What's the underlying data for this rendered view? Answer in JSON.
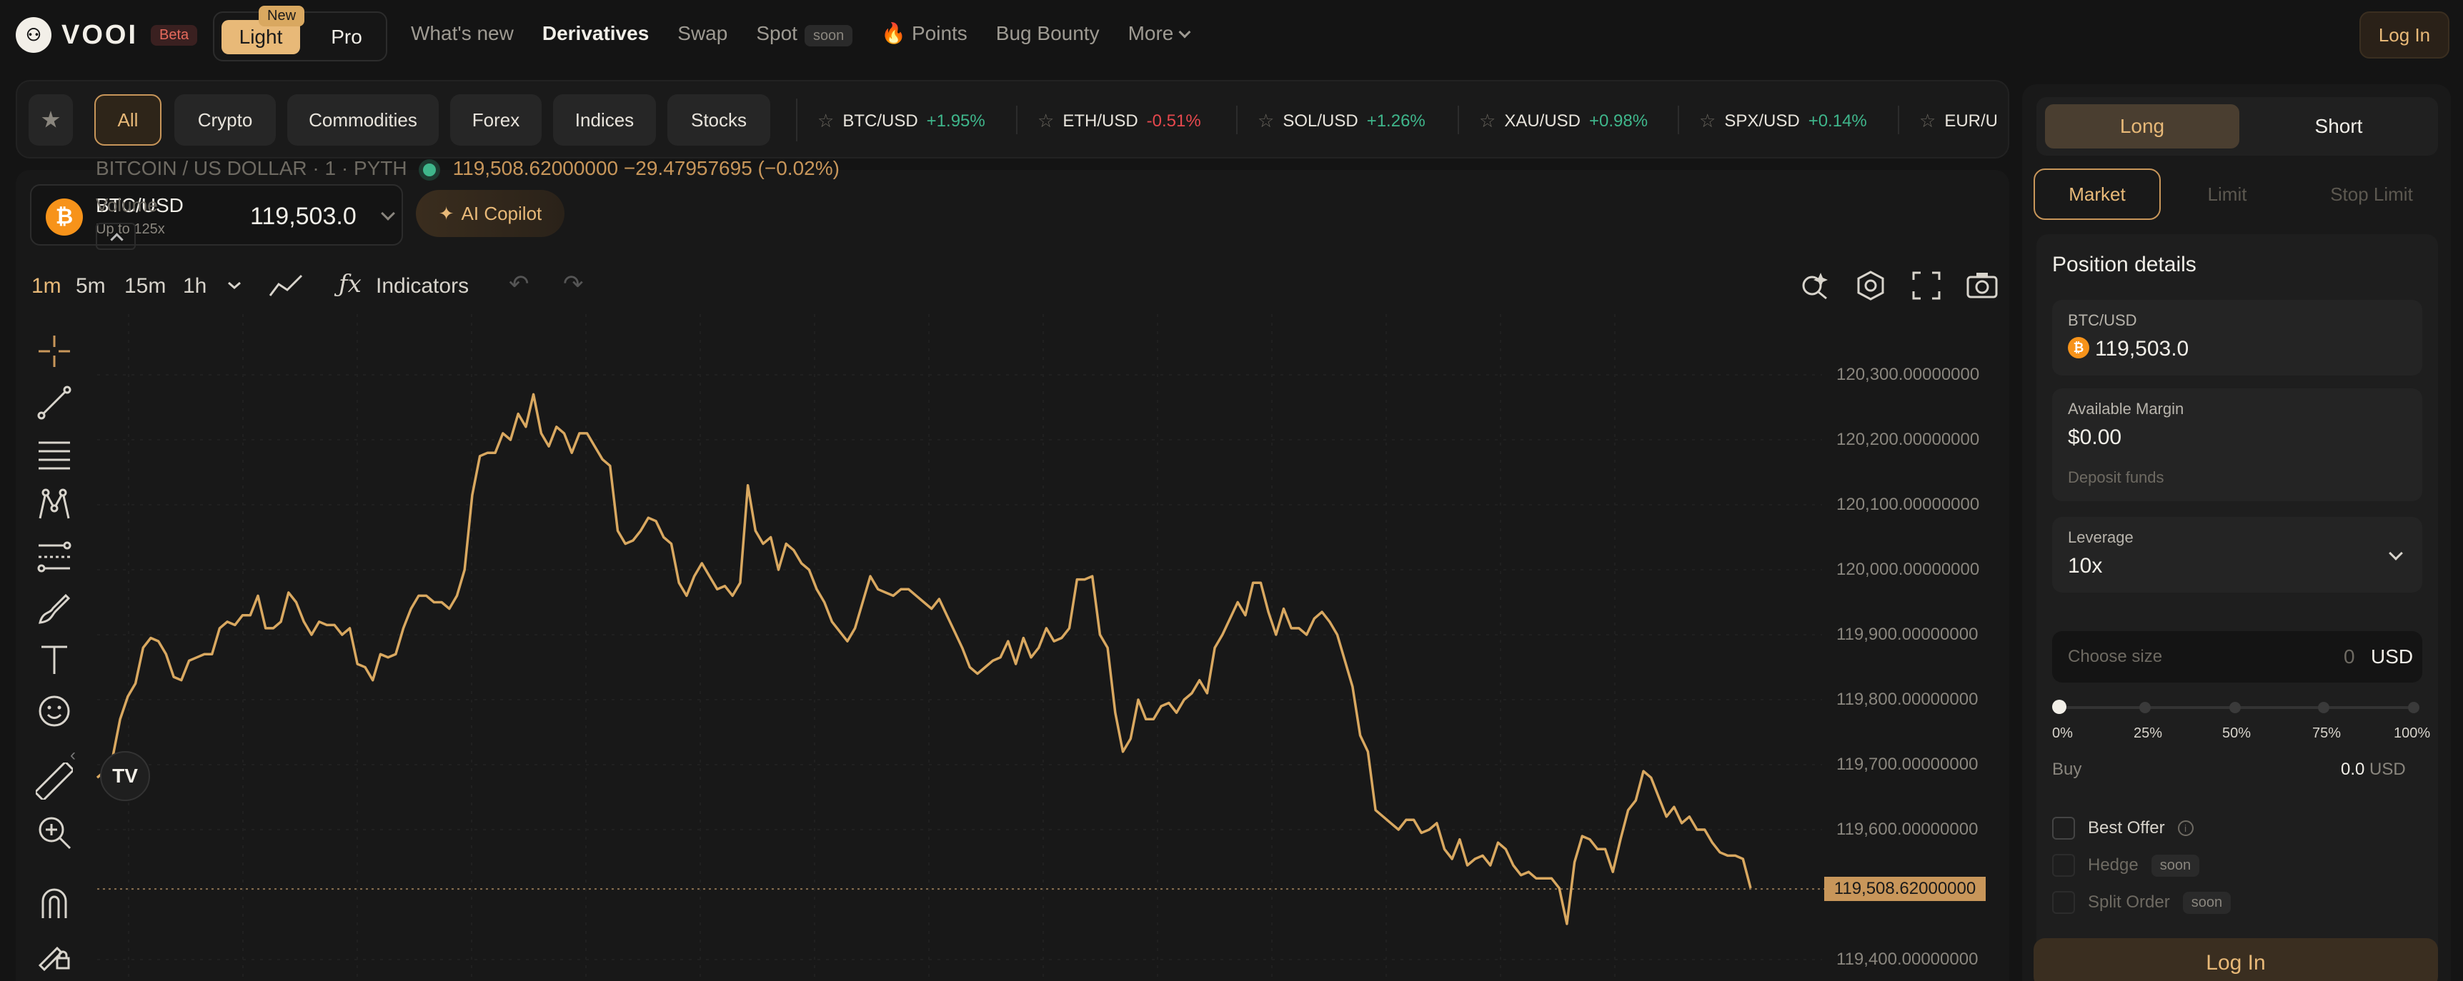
{
  "app": {
    "logo_text": "VOOI",
    "beta_badge": "Beta",
    "mode": {
      "light": "Light",
      "pro": "Pro",
      "new_badge": "New"
    },
    "login": "Log In"
  },
  "nav": {
    "items": [
      "What's new",
      "Derivatives",
      "Swap",
      "Spot",
      "Points",
      "Bug Bounty",
      "More"
    ],
    "spot_badge": "soon",
    "points_emoji": "🔥"
  },
  "filters": [
    "All",
    "Crypto",
    "Commodities",
    "Forex",
    "Indices",
    "Stocks"
  ],
  "tickers": [
    {
      "sym": "BTC/USD",
      "chg": "+1.95%",
      "dir": "pos"
    },
    {
      "sym": "ETH/USD",
      "chg": "-0.51%",
      "dir": "neg"
    },
    {
      "sym": "SOL/USD",
      "chg": "+1.26%",
      "dir": "pos"
    },
    {
      "sym": "XAU/USD",
      "chg": "+0.98%",
      "dir": "pos"
    },
    {
      "sym": "SPX/USD",
      "chg": "+0.14%",
      "dir": "pos"
    },
    {
      "sym": "EUR/U",
      "chg": "",
      "dir": "pos"
    }
  ],
  "market": {
    "pair": "BTC/USD",
    "leverage_note": "Up to 125x",
    "price": "119,503.0",
    "copilot": "AI Copilot"
  },
  "chart_toolbar": {
    "timeframes": [
      "1m",
      "5m",
      "15m",
      "1h"
    ],
    "active_tf": "1m",
    "indicators": "Indicators"
  },
  "chart_legend": {
    "title": "BITCOIN / US DOLLAR · 1 · PYTH",
    "values": "119,508.62000000  −29.47957695 (−0.02%)",
    "volume": "Volume"
  },
  "chart_data": {
    "type": "line",
    "series": [
      {
        "values": [
          119680,
          119690,
          119710,
          119770,
          119805,
          119825,
          119880,
          119895,
          119890,
          119870,
          119835,
          119830,
          119860,
          119865,
          119870,
          119870,
          119910,
          119920,
          119915,
          119930,
          119930,
          119960,
          119910,
          119910,
          119920,
          119965,
          119950,
          119920,
          119900,
          119920,
          119915,
          119915,
          119900,
          119910,
          119855,
          119850,
          119830,
          119870,
          119865,
          119870,
          119910,
          119940,
          119960,
          119960,
          119950,
          119950,
          119940,
          119960,
          120000,
          120115,
          120175,
          120180,
          120180,
          120210,
          120200,
          120240,
          120220,
          120270,
          120210,
          120190,
          120220,
          120210,
          120180,
          120210,
          120210,
          120190,
          120170,
          120160,
          120060,
          120040,
          120045,
          120060,
          120080,
          120075,
          120050,
          120040,
          119980,
          119960,
          119990,
          120010,
          119990,
          119970,
          119975,
          119960,
          119980,
          120130,
          120060,
          120040,
          120050,
          120000,
          120040,
          120030,
          120010,
          120000,
          119970,
          119950,
          119920,
          119905,
          119890,
          119910,
          119950,
          119990,
          119970,
          119965,
          119960,
          119970,
          119970,
          119960,
          119950,
          119940,
          119955,
          119930,
          119905,
          119880,
          119850,
          119840,
          119850,
          119860,
          119865,
          119890,
          119855,
          119895,
          119865,
          119880,
          119910,
          119890,
          119895,
          119910,
          119985,
          119985,
          119990,
          119900,
          119880,
          119780,
          119720,
          119740,
          119800,
          119770,
          119770,
          119790,
          119795,
          119780,
          119800,
          119810,
          119830,
          119810,
          119880,
          119900,
          119925,
          119950,
          119930,
          119980,
          119980,
          119935,
          119900,
          119940,
          119910,
          119910,
          119900,
          119925,
          119935,
          119920,
          119900,
          119860,
          119820,
          119745,
          119720,
          119630,
          119620,
          119610,
          119600,
          119615,
          119615,
          119595,
          119600,
          119610,
          119570,
          119555,
          119585,
          119545,
          119555,
          119560,
          119545,
          119580,
          119570,
          119545,
          119530,
          119535,
          119525,
          119525,
          119525,
          119510,
          119455,
          119550,
          119590,
          119585,
          119570,
          119570,
          119535,
          119585,
          119630,
          119645,
          119690,
          119680,
          119650,
          119620,
          119635,
          119610,
          119620,
          119600,
          119600,
          119580,
          119565,
          119560,
          119560,
          119555,
          119510
        ]
      }
    ],
    "ylim": [
      119400,
      120300
    ],
    "yticks": [
      "120,300.00000000",
      "120,200.00000000",
      "120,100.00000000",
      "120,000.00000000",
      "119,900.00000000",
      "119,800.00000000",
      "119,700.00000000",
      "119,600.00000000",
      "119,400.00000000"
    ],
    "ytick_values": [
      120300,
      120200,
      120100,
      120000,
      119900,
      119800,
      119700,
      119600,
      119400
    ],
    "current_price_label": "119,508.62000000",
    "current_price": 119508.62,
    "line_color": "#d9a860",
    "grid": true
  },
  "trade_panel": {
    "side": {
      "long": "Long",
      "short": "Short"
    },
    "order_types": [
      "Market",
      "Limit",
      "Stop Limit"
    ],
    "position_title": "Position details",
    "pair_label": "BTC/USD",
    "pair_price": "119,503.0",
    "margin_label": "Available Margin",
    "margin_value": "$0.00",
    "deposit": "Deposit funds",
    "leverage_label": "Leverage",
    "leverage_value": "10x",
    "size_placeholder": "Choose size",
    "size_value": "0",
    "size_unit": "USD",
    "slider_marks": [
      "0%",
      "25%",
      "50%",
      "75%",
      "100%"
    ],
    "slider_value": 0,
    "buy_label": "Buy",
    "buy_value": "0.0",
    "buy_unit": "USD",
    "options": [
      {
        "label": "Best Offer",
        "badge": ""
      },
      {
        "label": "Hedge",
        "badge": "soon"
      },
      {
        "label": "Split Order",
        "badge": "soon"
      }
    ],
    "login": "Log In"
  },
  "colors": {
    "accent": "#e8b978",
    "positive": "#3fb68b",
    "negative": "#e5484d",
    "background": "#141414"
  }
}
